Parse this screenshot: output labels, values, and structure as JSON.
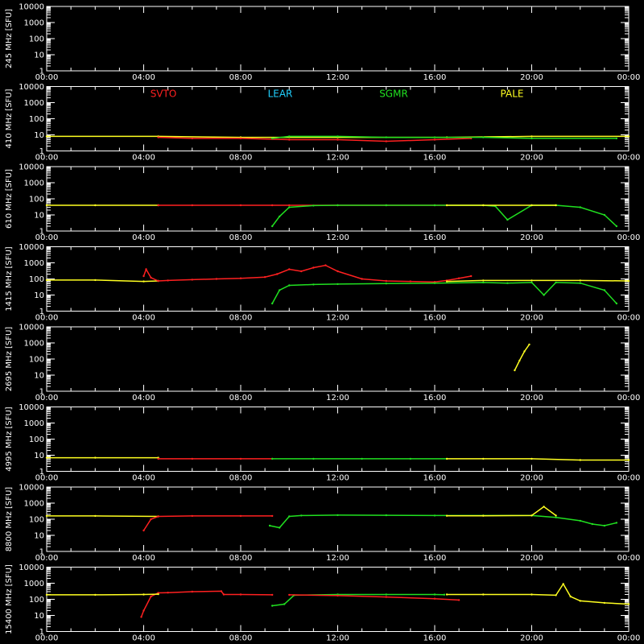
{
  "chart_data": {
    "type": "line",
    "layout": "8 vertically stacked panels sharing a 00:00–24:00 UT time axis, log-scale flux axis",
    "background": "#000000",
    "axis_color": "#ffffff",
    "x_ticks": [
      "00:00",
      "04:00",
      "08:00",
      "12:00",
      "16:00",
      "20:00",
      "00:00"
    ],
    "x_range_hours": [
      0,
      24
    ],
    "y_scale": "log",
    "y_range": [
      1,
      10000
    ],
    "y_ticks": [
      "1",
      "10",
      "100",
      "1000",
      "10000"
    ],
    "legend": [
      {
        "name": "SVTO",
        "color": "#ff2020"
      },
      {
        "name": "LEAR",
        "color": "#20d0ff"
      },
      {
        "name": "SGMR",
        "color": "#20e020"
      },
      {
        "name": "PALE",
        "color": "#ffff20"
      }
    ],
    "panels": [
      {
        "ylabel": "245 MHz [SFU]",
        "series": []
      },
      {
        "ylabel": "410 MHz [SFU]",
        "series": [
          {
            "station": "PALE",
            "hours": [
              0,
              4.6,
              8,
              12,
              16.5,
              20,
              24
            ],
            "values": [
              8,
              8,
              7,
              7,
              7,
              8,
              8
            ]
          },
          {
            "station": "SVTO",
            "hours": [
              4.6,
              6,
              8,
              10,
              12,
              14,
              16,
              17.5
            ],
            "values": [
              7,
              6,
              6,
              5,
              5,
              4,
              5,
              6
            ]
          },
          {
            "station": "SGMR",
            "hours": [
              9.3,
              10,
              12,
              14,
              16,
              18,
              20,
              23.5
            ],
            "values": [
              6,
              8,
              8,
              7,
              7,
              7,
              6,
              6
            ]
          }
        ]
      },
      {
        "ylabel": "610 MHz [SFU]",
        "series": [
          {
            "station": "PALE",
            "hours": [
              0,
              2,
              4.6
            ],
            "values": [
              40,
              40,
              40
            ]
          },
          {
            "station": "SVTO",
            "hours": [
              4.6,
              6,
              8,
              9.3,
              10,
              12,
              14,
              16,
              16.5
            ],
            "values": [
              40,
              40,
              40,
              40,
              40,
              40,
              40,
              40,
              40
            ]
          },
          {
            "station": "SGMR",
            "hours": [
              9.3,
              9.6,
              10,
              11,
              12,
              14,
              16,
              18,
              18.5,
              19,
              20,
              21,
              22,
              23,
              23.5
            ],
            "values": [
              2,
              8,
              30,
              38,
              40,
              40,
              40,
              40,
              35,
              5,
              40,
              40,
              30,
              10,
              2
            ]
          },
          {
            "station": "PALE",
            "hours": [
              16.5,
              18,
              20,
              21
            ],
            "values": [
              40,
              40,
              40,
              40
            ]
          }
        ]
      },
      {
        "ylabel": "1415 MHz [SFU]",
        "series": [
          {
            "station": "PALE",
            "hours": [
              0,
              2,
              4,
              4.6
            ],
            "values": [
              85,
              85,
              70,
              75
            ]
          },
          {
            "station": "SVTO",
            "hours": [
              4,
              4.1,
              4.3,
              4.6,
              5,
              6,
              7,
              8,
              9,
              9.5,
              10,
              10.5,
              11,
              11.5,
              12,
              13,
              14,
              15,
              16,
              16.5,
              17,
              17.5
            ],
            "values": [
              150,
              400,
              120,
              75,
              80,
              90,
              100,
              110,
              130,
              200,
              400,
              300,
              500,
              700,
              300,
              100,
              75,
              70,
              65,
              80,
              110,
              150
            ]
          },
          {
            "station": "SGMR",
            "hours": [
              9.3,
              9.6,
              10,
              11,
              12,
              14,
              16,
              18,
              19,
              20,
              20.5,
              21,
              22,
              23,
              23.5
            ],
            "values": [
              3,
              20,
              40,
              45,
              48,
              52,
              55,
              60,
              55,
              60,
              10,
              60,
              55,
              20,
              3
            ]
          },
          {
            "station": "PALE",
            "hours": [
              16.5,
              18,
              20,
              22,
              24
            ],
            "values": [
              70,
              80,
              80,
              80,
              75
            ]
          }
        ]
      },
      {
        "ylabel": "2695 MHz [SFU]",
        "series": [
          {
            "station": "PALE",
            "hours": [
              19.3,
              19.5,
              19.7,
              19.9
            ],
            "values": [
              20,
              80,
              300,
              800
            ]
          }
        ]
      },
      {
        "ylabel": "4995 MHz [SFU]",
        "series": [
          {
            "station": "PALE",
            "hours": [
              0,
              2,
              4.6
            ],
            "values": [
              7,
              7,
              7
            ]
          },
          {
            "station": "SVTO",
            "hours": [
              4.6,
              6,
              8,
              9.3
            ],
            "values": [
              6,
              6,
              6,
              6
            ]
          },
          {
            "station": "SGMR",
            "hours": [
              9.3,
              11,
              13,
              15,
              16.5
            ],
            "values": [
              6,
              6,
              6,
              6,
              6
            ]
          },
          {
            "station": "PALE",
            "hours": [
              16.5,
              18,
              20,
              22,
              24
            ],
            "values": [
              6,
              6,
              6,
              5,
              5
            ]
          }
        ]
      },
      {
        "ylabel": "8800 MHz [SFU]",
        "series": [
          {
            "station": "PALE",
            "hours": [
              0,
              2,
              4.6
            ],
            "values": [
              160,
              160,
              150
            ]
          },
          {
            "station": "SVTO",
            "hours": [
              4,
              4.3,
              4.6,
              6,
              8,
              9.3
            ],
            "values": [
              20,
              100,
              150,
              160,
              160,
              160
            ]
          },
          {
            "station": "SGMR",
            "hours": [
              9.2,
              9.6,
              10,
              10.5,
              12,
              14,
              16,
              18,
              20,
              21,
              22,
              22.5,
              23,
              23.5
            ],
            "values": [
              40,
              30,
              150,
              170,
              180,
              175,
              170,
              170,
              170,
              130,
              80,
              50,
              40,
              60
            ]
          },
          {
            "station": "PALE",
            "hours": [
              16.5,
              18,
              20,
              20.5,
              21
            ],
            "values": [
              165,
              165,
              170,
              600,
              170
            ]
          }
        ]
      },
      {
        "ylabel": "15400 MHz [SFU]",
        "series": [
          {
            "station": "SVTO",
            "hours": [
              3.9,
              4,
              4.3,
              4.6,
              5,
              6,
              7.2,
              7.3,
              8,
              9.3
            ],
            "values": [
              8,
              20,
              150,
              250,
              260,
              300,
              320,
              200,
              200,
              190
            ]
          },
          {
            "station": "PALE",
            "hours": [
              0,
              2,
              4,
              4.6
            ],
            "values": [
              190,
              190,
              200,
              210
            ]
          },
          {
            "station": "SGMR",
            "hours": [
              9.3,
              9.8,
              10.2,
              12,
              14,
              16,
              16.4
            ],
            "values": [
              40,
              50,
              180,
              200,
              200,
              200,
              195
            ]
          },
          {
            "station": "SVTO",
            "hours": [
              10,
              12,
              14,
              16,
              17
            ],
            "values": [
              190,
              170,
              140,
              110,
              90
            ]
          },
          {
            "station": "PALE",
            "hours": [
              16.5,
              18,
              20,
              21,
              21.3,
              21.6,
              22,
              23,
              24
            ],
            "values": [
              200,
              200,
              200,
              180,
              900,
              150,
              80,
              60,
              50
            ]
          }
        ]
      }
    ]
  }
}
